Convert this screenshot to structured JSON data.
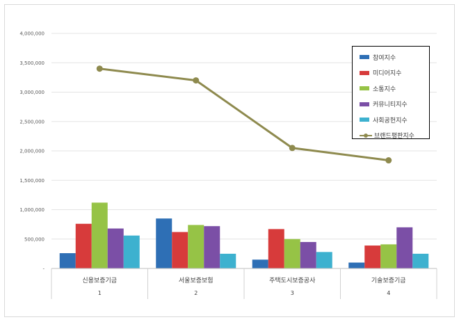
{
  "chart_data": {
    "type": "bar",
    "title": "",
    "xlabel": "",
    "ylabel": "",
    "ylim": [
      0,
      4000000
    ],
    "y_ticks": [
      "-",
      "500,000",
      "1,000,000",
      "1,500,000",
      "2,000,000",
      "2,500,000",
      "3,000,000",
      "3,500,000",
      "4,000,000"
    ],
    "categories": [
      "신용보증기금",
      "서울보증보험",
      "주택도시보증공사",
      "기술보증기금"
    ],
    "group_labels": [
      "1",
      "2",
      "3",
      "4"
    ],
    "series": [
      {
        "name": "참여지수",
        "type": "bar",
        "color": "#2E6FB5",
        "values": [
          260000,
          850000,
          150000,
          100000
        ]
      },
      {
        "name": "미디어지수",
        "type": "bar",
        "color": "#D73B3B",
        "values": [
          760000,
          620000,
          670000,
          390000
        ]
      },
      {
        "name": "소통지수",
        "type": "bar",
        "color": "#96C346",
        "values": [
          1120000,
          740000,
          500000,
          410000
        ]
      },
      {
        "name": "커뮤니티지수",
        "type": "bar",
        "color": "#7B4FA6",
        "values": [
          680000,
          720000,
          450000,
          700000
        ]
      },
      {
        "name": "사회공헌지수",
        "type": "bar",
        "color": "#3DB1CF",
        "values": [
          560000,
          250000,
          280000,
          250000
        ]
      },
      {
        "name": "브랜드평판지수",
        "type": "line",
        "color": "#8E8A4E",
        "values": [
          3400000,
          3200000,
          2050000,
          1840000
        ]
      }
    ],
    "grid": true,
    "legend_position": "top-right"
  }
}
